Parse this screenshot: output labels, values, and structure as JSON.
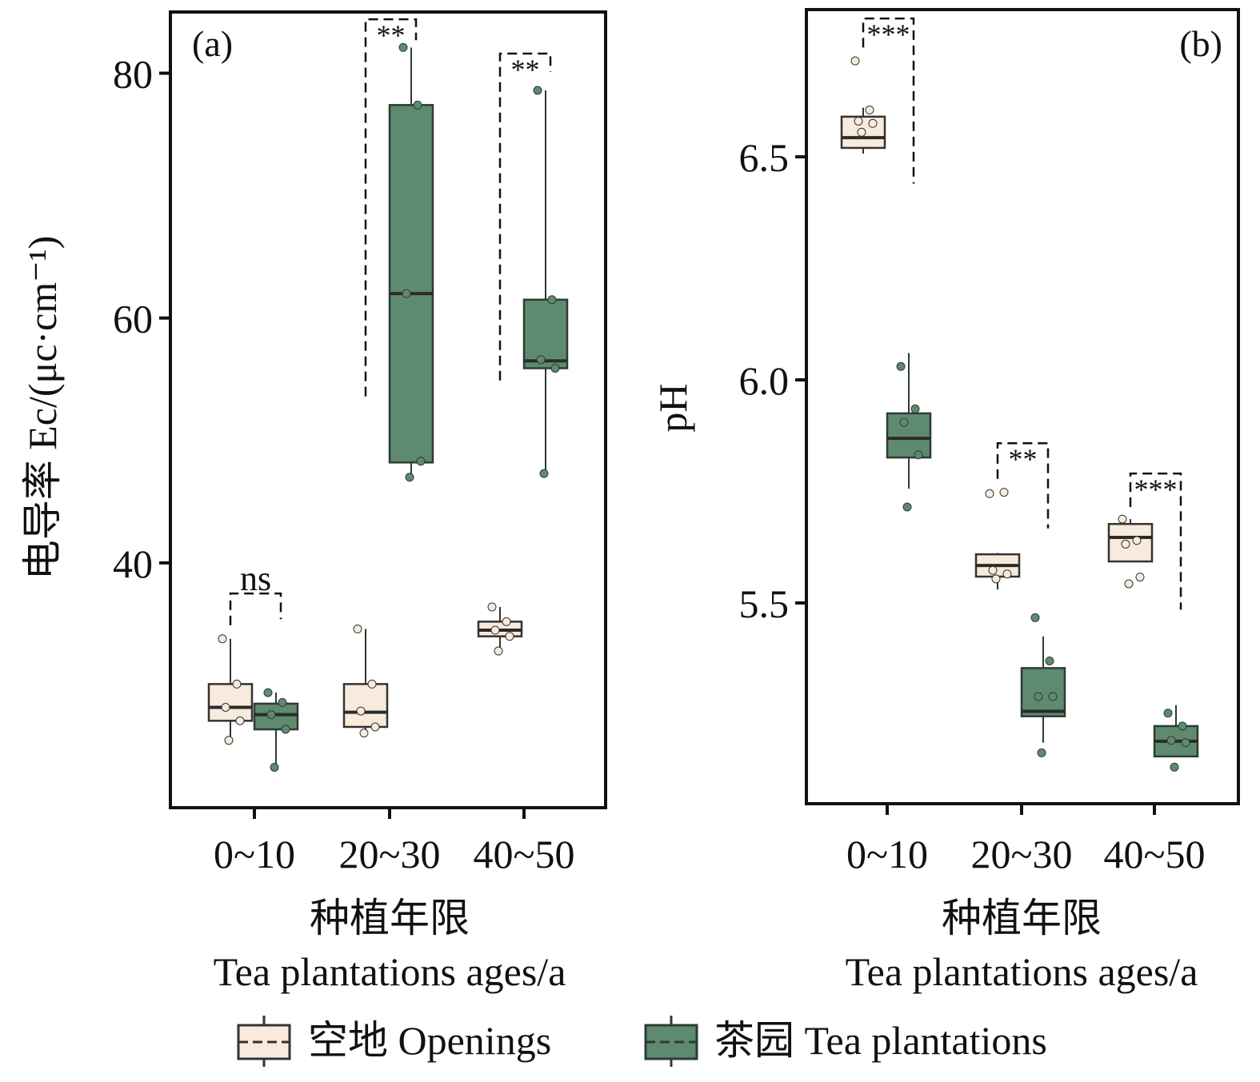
{
  "colors": {
    "openings": "#f8eadc",
    "tea": "#5e8a6f",
    "tea_edge": "#2e3b33",
    "open_edge": "#333333",
    "median": "#2b2b2b"
  },
  "legend": {
    "openings": "空地 Openings",
    "tea": "茶园 Tea plantations"
  },
  "chart_data": [
    {
      "type": "box",
      "panel_label": "(a)",
      "ylabel": "电导率 Ec/(μc·cm⁻¹)",
      "xlabel_cn": "种植年限",
      "xlabel_en": "Tea plantations ages/a",
      "categories": [
        "0~10",
        "20~30",
        "40~50"
      ],
      "ylim": [
        20,
        85
      ],
      "yticks": [
        40,
        60,
        80
      ],
      "series": [
        {
          "name": "空地 Openings",
          "boxes": [
            {
              "q1": 27.1,
              "median": 28.2,
              "q3": 30.1,
              "whisker_low": 25.5,
              "whisker_high": 33.8,
              "points": [
                33.8,
                30.1,
                28.2,
                27.1,
                25.5
              ]
            },
            {
              "q1": 26.6,
              "median": 27.8,
              "q3": 30.1,
              "whisker_low": 26.1,
              "whisker_high": 34.6,
              "points": [
                34.6,
                30.1,
                27.9,
                26.6,
                26.1
              ]
            },
            {
              "q1": 34.0,
              "median": 34.5,
              "q3": 35.2,
              "whisker_low": 32.8,
              "whisker_high": 36.4,
              "points": [
                36.4,
                35.2,
                34.5,
                34.0,
                32.8
              ]
            }
          ]
        },
        {
          "name": "茶园 Tea plantations",
          "boxes": [
            {
              "q1": 26.4,
              "median": 27.6,
              "q3": 28.5,
              "whisker_low": 23.3,
              "whisker_high": 29.4,
              "points": [
                29.4,
                28.6,
                27.6,
                26.4,
                23.3
              ]
            },
            {
              "q1": 48.2,
              "median": 62.0,
              "q3": 77.4,
              "whisker_low": 47.0,
              "whisker_high": 82.1,
              "points": [
                82.1,
                77.4,
                62.0,
                48.3,
                47.0
              ]
            },
            {
              "q1": 55.9,
              "median": 56.5,
              "q3": 61.5,
              "whisker_low": 47.3,
              "whisker_high": 78.6,
              "points": [
                78.6,
                61.5,
                56.6,
                55.9,
                47.3
              ]
            }
          ]
        }
      ],
      "significance": [
        {
          "category": "0~10",
          "label": "ns",
          "top": 37.5,
          "left_end": 34.9,
          "right_end": 35.4
        },
        {
          "category": "20~30",
          "label": "**",
          "top": 84.4,
          "left_end": 53.6,
          "right_end": 82.7
        },
        {
          "category": "40~50",
          "label": "**",
          "top": 81.6,
          "left_end": 54.9,
          "right_end": 80.1
        }
      ]
    },
    {
      "type": "box",
      "panel_label": "(b)",
      "ylabel": "pH",
      "xlabel_cn": "种植年限",
      "xlabel_en": "Tea plantations ages/a",
      "categories": [
        "0~10",
        "20~30",
        "40~50"
      ],
      "ylim": [
        5.05,
        6.83
      ],
      "yticks": [
        5.5,
        6.0,
        6.5
      ],
      "series": [
        {
          "name": "空地 Openings",
          "boxes": [
            {
              "q1": 6.52,
              "median": 6.543,
              "q3": 6.59,
              "whisker_low": 6.507,
              "whisker_high": 6.61,
              "points": [
                6.715,
                6.605,
                6.58,
                6.575,
                6.555
              ]
            },
            {
              "q1": 5.559,
              "median": 5.584,
              "q3": 5.609,
              "whisker_low": 5.53,
              "whisker_high": 5.612,
              "points": [
                5.745,
                5.748,
                5.573,
                5.565,
                5.554
              ]
            },
            {
              "q1": 5.593,
              "median": 5.647,
              "q3": 5.677,
              "whisker_low": 5.593,
              "whisker_high": 5.688,
              "points": [
                5.688,
                5.64,
                5.632,
                5.558,
                5.543
              ]
            }
          ]
        },
        {
          "name": "茶园 Tea plantations",
          "boxes": [
            {
              "q1": 5.826,
              "median": 5.869,
              "q3": 5.925,
              "whisker_low": 5.756,
              "whisker_high": 6.06,
              "points": [
                6.03,
                5.935,
                5.905,
                5.832,
                5.715
              ]
            },
            {
              "q1": 5.246,
              "median": 5.257,
              "q3": 5.354,
              "whisker_low": 5.187,
              "whisker_high": 5.425,
              "points": [
                5.467,
                5.37,
                5.29,
                5.29,
                5.164
              ]
            },
            {
              "q1": 5.156,
              "median": 5.19,
              "q3": 5.224,
              "whisker_low": 5.156,
              "whisker_high": 5.271,
              "points": [
                5.253,
                5.224,
                5.192,
                5.187,
                5.132
              ]
            }
          ]
        }
      ],
      "significance": [
        {
          "category": "0~10",
          "label": "***",
          "top": 6.81,
          "left_end": 6.745,
          "right_end": 6.44
        },
        {
          "category": "20~30",
          "label": "**",
          "top": 5.858,
          "left_end": 5.778,
          "right_end": 5.667
        },
        {
          "category": "40~50",
          "label": "***",
          "top": 5.79,
          "left_end": 5.715,
          "right_end": 5.485
        }
      ]
    }
  ]
}
